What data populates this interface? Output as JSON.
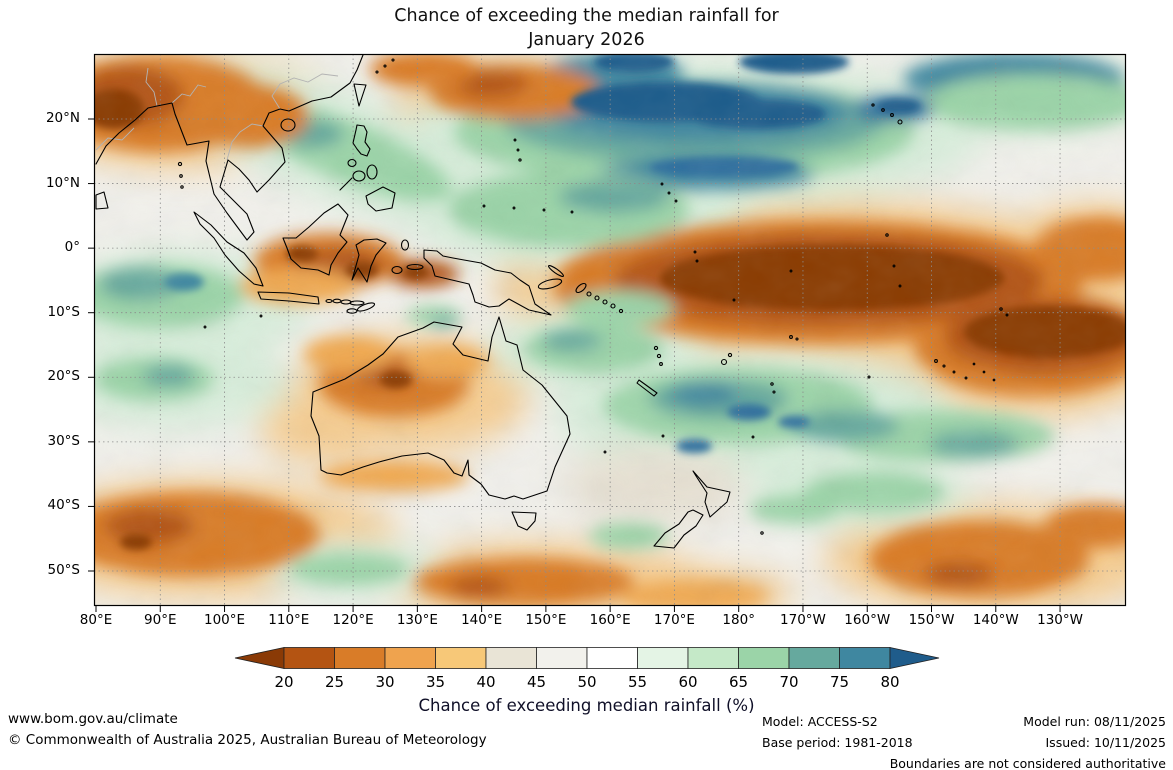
{
  "title": {
    "line1": "Chance of exceeding the median rainfall for",
    "line2": "January 2026"
  },
  "axes": {
    "lat_ticks": [
      "20°N",
      "10°N",
      "0°",
      "10°S",
      "20°S",
      "30°S",
      "40°S",
      "50°S"
    ],
    "lon_ticks": [
      "80°E",
      "90°E",
      "100°E",
      "110°E",
      "120°E",
      "130°E",
      "140°E",
      "150°E",
      "160°E",
      "170°E",
      "180°",
      "170°W",
      "160°W",
      "150°W",
      "140°W",
      "130°W"
    ]
  },
  "legend": {
    "caption": "Chance of exceeding median rainfall (%)",
    "tick_labels": [
      "20",
      "25",
      "30",
      "35",
      "40",
      "45",
      "50",
      "55",
      "60",
      "65",
      "70",
      "75",
      "80"
    ],
    "segment_colors": [
      "#b45412",
      "#d97c28",
      "#efa34e",
      "#f7c878",
      "#e9e4d6",
      "#f2f1ec",
      "#ffffff",
      "#e4f4e5",
      "#c5e9c8",
      "#9bd4a8",
      "#66a99e",
      "#3f87a0"
    ],
    "arrow_left_color": "#8a3a06",
    "arrow_right_color": "#1f5c8b"
  },
  "footer": {
    "website": "www.bom.gov.au/climate",
    "copyright": "© Commonwealth of Australia 2025, Australian Bureau of Meteorology",
    "model": "Model: ACCESS-S2",
    "base_period": "Base period: 1981-2018",
    "model_run": "Model run: 08/11/2025",
    "issued": "Issued: 10/11/2025",
    "boundaries_note": "Boundaries are not considered authoritative"
  }
}
